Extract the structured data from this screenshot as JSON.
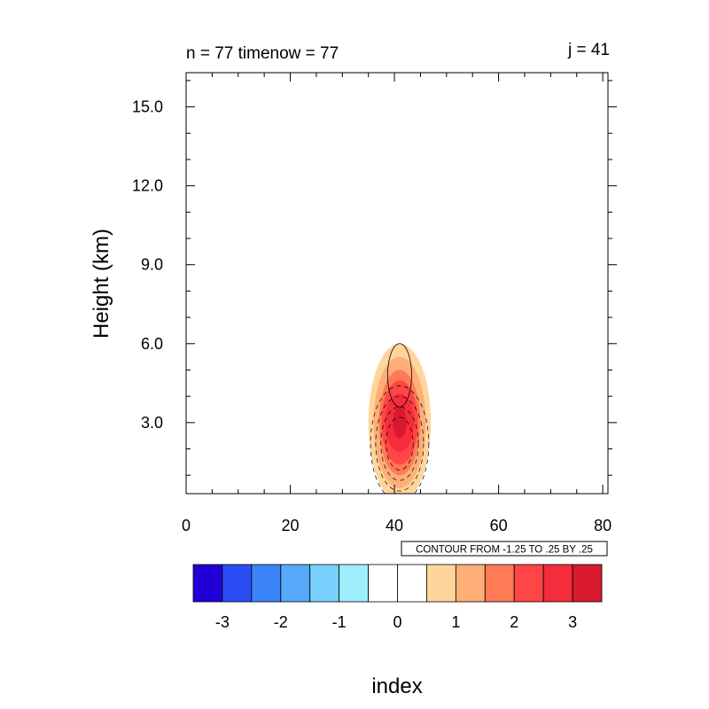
{
  "chart_data": {
    "type": "contour",
    "title_left": "n = 77 timenow = 77",
    "title_right": "j = 41",
    "ylabel": "Height (km)",
    "xlabel": "index",
    "xlim": [
      0,
      81
    ],
    "ylim": [
      0.3,
      16.3
    ],
    "x_ticks": [
      0,
      20,
      40,
      60,
      80
    ],
    "x_tick_labels": [
      "0",
      "20",
      "40",
      "60",
      "80"
    ],
    "y_ticks": [
      3,
      6,
      9,
      12,
      15
    ],
    "y_tick_labels": [
      "3.0",
      "6.0",
      "9.0",
      "12.0",
      "15.0"
    ],
    "contour_info": "CONTOUR FROM -1.25 TO .25 BY .25",
    "filled_field": {
      "center_x": 41,
      "center_height_km": 3.0,
      "levels": [
        {
          "value": 0.5,
          "x_half_width": 6,
          "height_half_extent": 3.0,
          "color": "#ffd59c"
        },
        {
          "value": 1.0,
          "x_half_width": 5,
          "height_half_extent": 2.5,
          "color": "#ffae78"
        },
        {
          "value": 1.5,
          "x_half_width": 4,
          "height_half_extent": 2.0,
          "color": "#ff7a55"
        },
        {
          "value": 2.0,
          "x_half_width": 3.5,
          "height_half_extent": 1.6,
          "color": "#ff4545"
        },
        {
          "value": 2.5,
          "x_half_width": 2.8,
          "height_half_extent": 1.1,
          "color": "#f42c3c"
        },
        {
          "value": 3.0,
          "x_half_width": 1.3,
          "height_half_extent": 0.6,
          "color": "#d8192e"
        }
      ]
    },
    "line_contours": {
      "positive": [
        {
          "value": 0.25,
          "center_x": 41,
          "center_height_km": 4.8,
          "x_half_width": 2.3,
          "height_half_extent": 1.2
        }
      ],
      "negative": [
        {
          "value": -0.25,
          "center_x": 41,
          "center_height_km": 2.2,
          "x_half_width": 5.6,
          "height_half_extent": 2.2
        },
        {
          "value": -0.5,
          "center_x": 41,
          "center_height_km": 2.2,
          "x_half_width": 4.6,
          "height_half_extent": 1.8
        },
        {
          "value": -0.75,
          "center_x": 41,
          "center_height_km": 2.2,
          "x_half_width": 3.6,
          "height_half_extent": 1.4
        },
        {
          "value": -1.0,
          "center_x": 41,
          "center_height_km": 2.2,
          "x_half_width": 2.6,
          "height_half_extent": 1.0
        }
      ]
    },
    "colorbar": {
      "colors": [
        "#2000d6",
        "#2a4df5",
        "#3b83f9",
        "#57aafa",
        "#78d0fc",
        "#9eeefe",
        "#ffffff",
        "#ffffff",
        "#ffd59c",
        "#ffae78",
        "#ff7a55",
        "#ff4545",
        "#f42c3c",
        "#d8192e"
      ],
      "labels": [
        "-3",
        "-2",
        "-1",
        "0",
        "1",
        "2",
        "3"
      ]
    }
  }
}
